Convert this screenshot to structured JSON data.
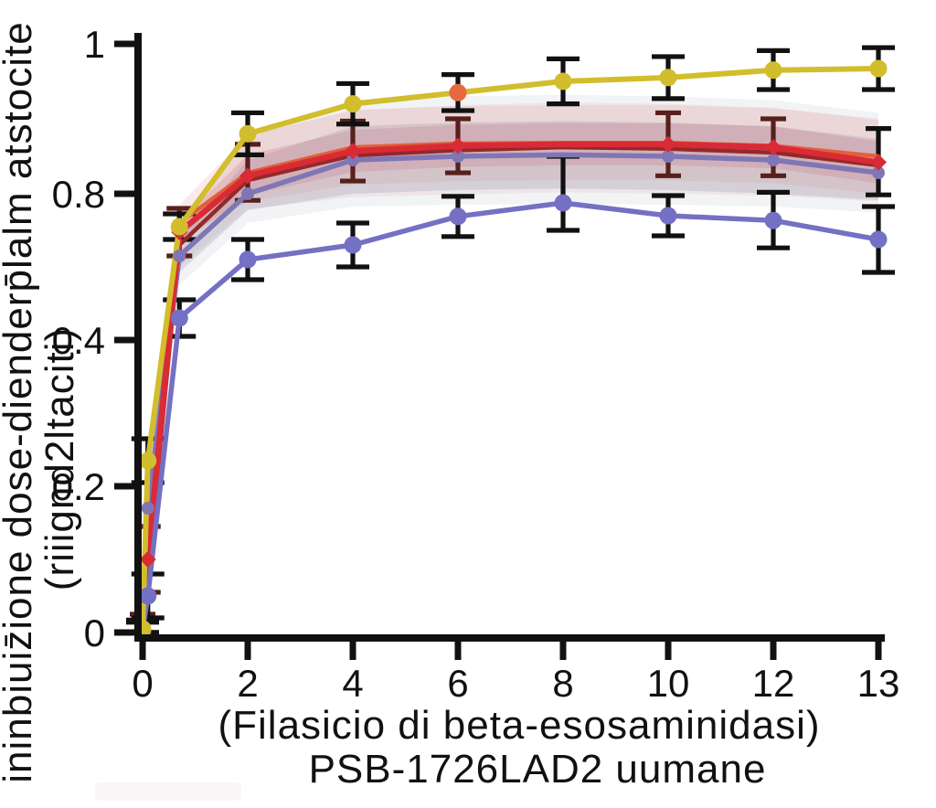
{
  "figure": {
    "background": "#ffffff",
    "smudge_color": "#faf6f7"
  },
  "chart_data": {
    "type": "line",
    "title": "",
    "xlabel_line1": "(Filasicio di  beta-esosaminidasi)",
    "xlabel_line2": "PSB-1726LAD2 uumane",
    "ylabel_line1": "ininbiuiz̄ione dose-dienderp̄lalm atstocite",
    "ylabel_line2": "(riiignd2ltaciti)",
    "xlim": [
      0,
      13
    ],
    "ylim": [
      0,
      1
    ],
    "grid": false,
    "legend": "none",
    "axis_color": "#111111",
    "x_tick_values": [
      0,
      2,
      4,
      6,
      8,
      10,
      12,
      13
    ],
    "x_tick_labels": [
      "0",
      "2",
      "4",
      "6",
      "8",
      "10",
      "12",
      "13"
    ],
    "y_tick_values": [
      0,
      0.2,
      0.4,
      0.8,
      1
    ],
    "y_tick_labels": [
      "0",
      "0.2",
      "0.4",
      "0.8",
      "1"
    ],
    "y_axis_note": "ticks are evenly spaced although labels jump from 0.4 to 0.8 (as printed)",
    "x": [
      0,
      0.1,
      0.7,
      2,
      4,
      6,
      8,
      10,
      12,
      13
    ],
    "series": [
      {
        "name": "maroon",
        "color": "#93282a",
        "width": 4.5,
        "marker": "none",
        "values": [
          0.003,
          0.08,
          0.66,
          0.818,
          0.851,
          0.858,
          0.862,
          0.86,
          0.855,
          0.838
        ],
        "err": null,
        "err_color": null
      },
      {
        "name": "orange",
        "color": "#e2603a",
        "width": 4.5,
        "marker": "none",
        "values": [
          0.005,
          0.12,
          0.72,
          0.828,
          0.862,
          0.867,
          0.868,
          0.868,
          0.864,
          0.85
        ],
        "err": null,
        "err_color": null
      },
      {
        "name": "slate",
        "color": "#7f76b5",
        "width": 5.5,
        "marker": "circle",
        "marker_size": 7,
        "marker_skip": [
          6
        ],
        "values": [
          0.004,
          0.17,
          0.63,
          0.8,
          0.845,
          0.85,
          0.852,
          0.85,
          0.845,
          0.828
        ],
        "err": null,
        "err_color": null
      },
      {
        "name": "red",
        "color": "#d92b35",
        "width": 6.5,
        "marker": "diamond",
        "marker_size": 9,
        "marker_skip": [
          6
        ],
        "values": [
          0.005,
          0.1,
          0.695,
          0.824,
          0.857,
          0.864,
          0.866,
          0.866,
          0.862,
          0.842
        ],
        "err": [
          0.02,
          0.045,
          0.065,
          0.042,
          0.04,
          0.036,
          0,
          0.042,
          0.038,
          0.045
        ],
        "err_color": "#57201c",
        "err_cap": 14
      },
      {
        "name": "blue",
        "color": "#7470c3",
        "width": 5.5,
        "marker": "circle",
        "marker_size": 9.5,
        "values": [
          0.002,
          0.05,
          0.46,
          0.62,
          0.66,
          0.738,
          0.775,
          0.74,
          0.727,
          0.675
        ],
        "err": [
          0.012,
          0.03,
          0.05,
          0.055,
          0.06,
          0.055,
          0.075,
          0.055,
          0.075,
          0.09
        ],
        "err_color": "#111111",
        "err_cap": 18
      },
      {
        "name": "yellow",
        "color": "#d2bd2c",
        "width": 6,
        "marker": "circle",
        "marker_size": 9.5,
        "values": [
          0.005,
          0.235,
          0.71,
          0.88,
          0.92,
          0.935,
          0.95,
          0.955,
          0.965,
          0.967
        ],
        "err": [
          0.012,
          0.03,
          0.035,
          0.028,
          0.027,
          0.024,
          0.03,
          0.028,
          0.026,
          0.028
        ],
        "err_color": "#111111",
        "err_cap": 18
      }
    ],
    "marker_overrides": [
      {
        "series": "yellow",
        "index": 5,
        "color": "#e8683f"
      }
    ],
    "err_color_overrides": [
      {
        "series": "red",
        "index": 9,
        "color": "#111111"
      }
    ],
    "bands": [
      {
        "series": "maroon",
        "half": 0.06,
        "color": "rgba(225,160,165,0.16)"
      },
      {
        "series": "orange",
        "half": 0.05,
        "color": "rgba(235,150,155,0.20)"
      },
      {
        "series": "red",
        "half": 0.028,
        "color": "rgba(220,60,75,0.18)"
      },
      {
        "series": "slate",
        "half": 0.08,
        "color": "rgba(150,155,175,0.12)"
      },
      {
        "series": "slate",
        "half": 0.045,
        "color": "rgba(120,125,150,0.20)"
      }
    ]
  }
}
